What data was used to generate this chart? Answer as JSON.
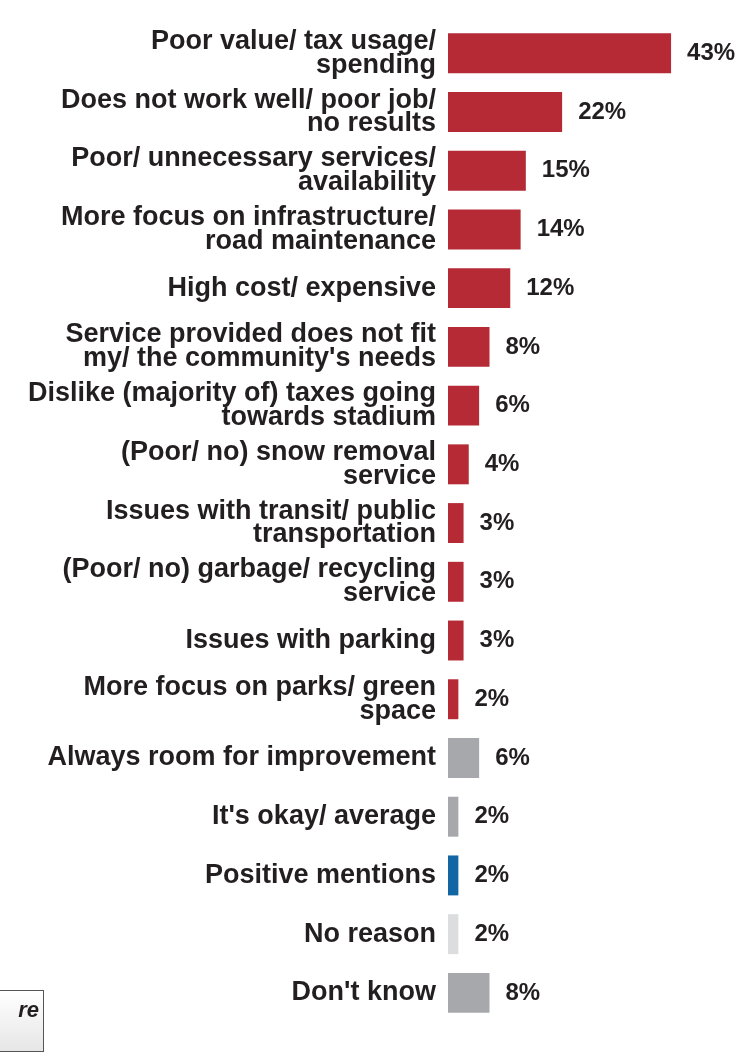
{
  "chart_data": {
    "type": "bar",
    "orientation": "horizontal",
    "value_labels": [
      "43%",
      "22%",
      "15%",
      "14%",
      "12%",
      "8%",
      "6%",
      "4%",
      "3%",
      "3%",
      "3%",
      "2%",
      "6%",
      "2%",
      "2%",
      "2%",
      "8%"
    ],
    "categories": [
      "Poor value/ tax usage/ spending",
      "Does not work well/ poor job/ no results",
      "Poor/ unnecessary services/ availability",
      "More focus on infrastructure/ road maintenance",
      "High cost/ expensive",
      "Service provided does not fit my/ the community's needs",
      "Dislike (majority of) taxes going towards stadium",
      "(Poor/ no) snow removal service",
      "Issues with transit/ public transportation",
      "(Poor/ no) garbage/ recycling service",
      "Issues with parking",
      "More focus on parks/ green space",
      "Always room for improvement",
      "It's okay/ average",
      "Positive mentions",
      "No reason",
      "Don't know"
    ],
    "values": [
      43,
      22,
      15,
      14,
      12,
      8,
      6,
      4,
      3,
      3,
      3,
      2,
      6,
      2,
      2,
      2,
      8
    ],
    "colors": [
      "#b52a35",
      "#b52a35",
      "#b52a35",
      "#b52a35",
      "#b52a35",
      "#b52a35",
      "#b52a35",
      "#b52a35",
      "#b52a35",
      "#b52a35",
      "#b52a35",
      "#b52a35",
      "#a7a8ac",
      "#a7a8ac",
      "#1166a3",
      "#dcdddf",
      "#a7a8ac"
    ],
    "annotations": [
      "re"
    ],
    "grid": false,
    "legend": false
  }
}
